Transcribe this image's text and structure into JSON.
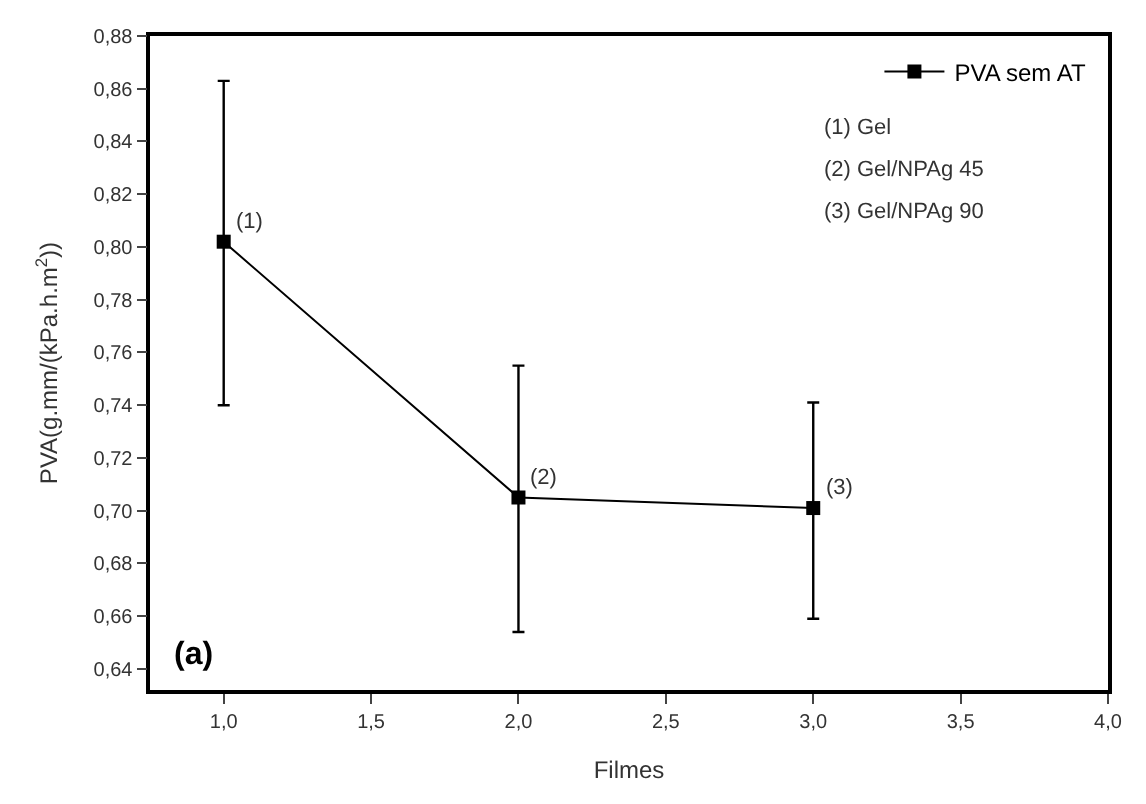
{
  "chart_data": {
    "type": "line",
    "xlabel": "Filmes",
    "ylabel": "PVA(g.mm/(kPa.h.m$^{2}$))",
    "x": [
      1.0,
      2.0,
      3.0
    ],
    "series": [
      {
        "name": "PVA sem AT",
        "color": "#000000",
        "values": [
          0.802,
          0.705,
          0.701
        ],
        "errors": [
          [
            0.74,
            0.863
          ],
          [
            0.654,
            0.755
          ],
          [
            0.659,
            0.741
          ]
        ]
      }
    ],
    "marker": "square",
    "line_style": "solid",
    "legend": "top right",
    "grid": false,
    "xlim": [
      0.75,
      4.0
    ],
    "xticks": [
      {
        "value": 1.0,
        "label": "1,0"
      },
      {
        "value": 1.5,
        "label": "1,5"
      },
      {
        "value": 2.0,
        "label": "2,0"
      },
      {
        "value": 2.5,
        "label": "2,5"
      },
      {
        "value": 3.0,
        "label": "3,0"
      },
      {
        "value": 3.5,
        "label": "3,5"
      },
      {
        "value": 4.0,
        "label": "4,0"
      }
    ],
    "ylim": [
      0.632,
      0.88
    ],
    "yticks": [
      {
        "value": 0.64,
        "label": "0,64"
      },
      {
        "value": 0.66,
        "label": "0,66"
      },
      {
        "value": 0.68,
        "label": "0,68"
      },
      {
        "value": 0.7,
        "label": "0,70"
      },
      {
        "value": 0.72,
        "label": "0,72"
      },
      {
        "value": 0.74,
        "label": "0,74"
      },
      {
        "value": 0.76,
        "label": "0,76"
      },
      {
        "value": 0.78,
        "label": "0,78"
      },
      {
        "value": 0.8,
        "label": "0,80"
      },
      {
        "value": 0.82,
        "label": "0,82"
      },
      {
        "value": 0.84,
        "label": "0,84"
      },
      {
        "value": 0.86,
        "label": "0,86"
      },
      {
        "value": 0.88,
        "label": "0,88"
      }
    ],
    "annotations": [
      {
        "text": "(1)",
        "x": 1.0,
        "y": 0.802
      },
      {
        "text": "(2)",
        "x": 2.0,
        "y": 0.705
      },
      {
        "text": "(3)",
        "x": 3.0,
        "y": 0.701
      },
      "(1) Gel",
      "(2) Gel/NPAg 45",
      "(3) Gel/NPAg 90",
      "(a)"
    ]
  }
}
